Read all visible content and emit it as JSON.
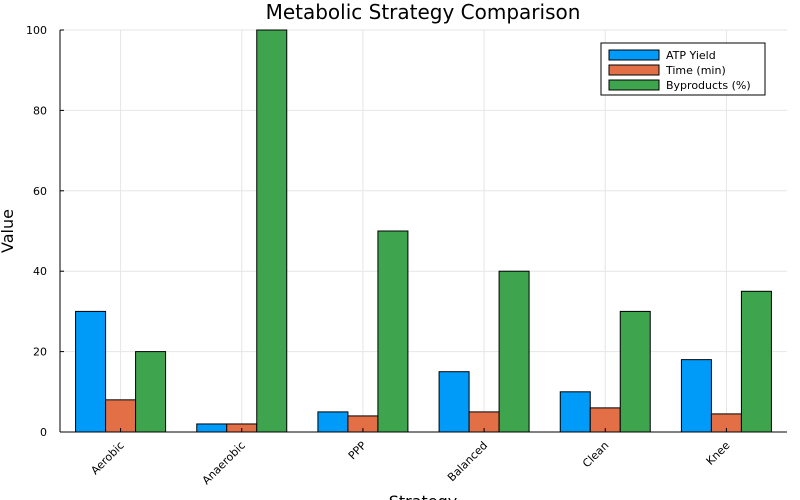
{
  "chart_data": {
    "type": "bar",
    "title": "Metabolic Strategy Comparison",
    "xlabel": "Strategy",
    "ylabel": "Value",
    "categories": [
      "Aerobic",
      "Anaerobic",
      "PPP",
      "Balanced",
      "Clean",
      "Knee"
    ],
    "series": [
      {
        "name": "ATP Yield",
        "color": "#009af9",
        "values": [
          30,
          2,
          5,
          15,
          10,
          18
        ]
      },
      {
        "name": "Time (min)",
        "color": "#e26f46",
        "values": [
          8,
          2,
          4,
          5,
          6,
          4.5
        ]
      },
      {
        "name": "Byproducts (%)",
        "color": "#3ea44e",
        "values": [
          20,
          100,
          50,
          40,
          30,
          35
        ]
      }
    ],
    "ylim": [
      0,
      100
    ],
    "yticks": [
      0,
      20,
      40,
      60,
      80,
      100
    ],
    "grid": true,
    "legend_position": "top-right"
  }
}
